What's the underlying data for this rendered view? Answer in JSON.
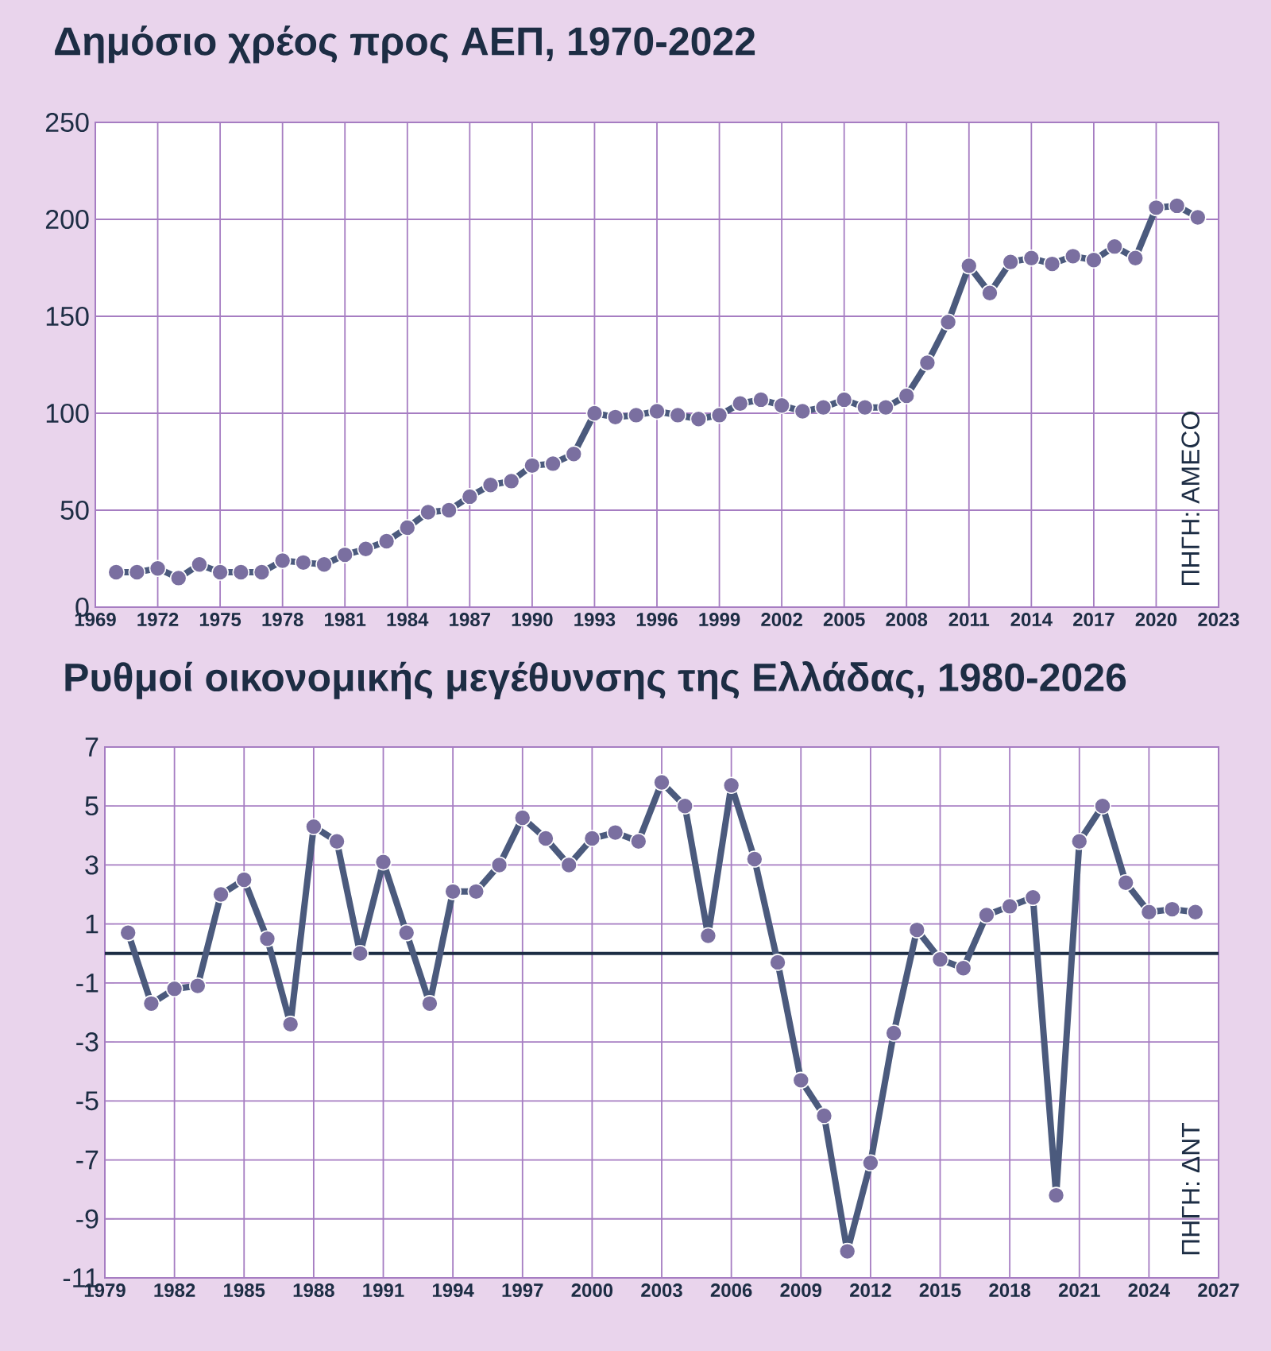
{
  "chart_data": [
    {
      "type": "line",
      "title": "Δημόσιο χρέος προς ΑΕΠ, 1970-2022",
      "x": [
        1970,
        1971,
        1972,
        1973,
        1974,
        1975,
        1976,
        1977,
        1978,
        1979,
        1980,
        1981,
        1982,
        1983,
        1984,
        1985,
        1986,
        1987,
        1988,
        1989,
        1990,
        1991,
        1992,
        1993,
        1994,
        1995,
        1996,
        1997,
        1998,
        1999,
        2000,
        2001,
        2002,
        2003,
        2004,
        2005,
        2006,
        2007,
        2008,
        2009,
        2010,
        2011,
        2012,
        2013,
        2014,
        2015,
        2016,
        2017,
        2018,
        2019,
        2020,
        2021,
        2022
      ],
      "values": [
        18,
        18,
        20,
        15,
        22,
        18,
        18,
        18,
        24,
        23,
        22,
        27,
        30,
        34,
        41,
        49,
        50,
        57,
        63,
        65,
        73,
        74,
        79,
        100,
        98,
        99,
        101,
        99,
        97,
        99,
        105,
        107,
        104,
        101,
        103,
        107,
        103,
        103,
        109,
        126,
        147,
        176,
        162,
        178,
        180,
        177,
        181,
        179,
        186,
        180,
        206,
        207,
        201
      ],
      "color": "#4b5a7d",
      "marker": "circle",
      "grid": true,
      "xlim": [
        1969,
        2023
      ],
      "ylim": [
        0,
        250
      ],
      "xticks": [
        1969,
        1972,
        1975,
        1978,
        1981,
        1984,
        1987,
        1990,
        1993,
        1996,
        1999,
        2002,
        2005,
        2008,
        2011,
        2014,
        2017,
        2020,
        2023
      ],
      "yticks": [
        0,
        50,
        100,
        150,
        200,
        250
      ],
      "annotations": [
        "ΠΗΓΗ: AMECO"
      ]
    },
    {
      "type": "line",
      "title": "Ρυθμοί οικονομικής μεγέθυνσης της Ελλάδας, 1980-2026",
      "x": [
        1980,
        1981,
        1982,
        1983,
        1984,
        1985,
        1986,
        1987,
        1988,
        1989,
        1990,
        1991,
        1992,
        1993,
        1994,
        1995,
        1996,
        1997,
        1998,
        1999,
        2000,
        2001,
        2002,
        2003,
        2004,
        2005,
        2006,
        2007,
        2008,
        2009,
        2010,
        2011,
        2012,
        2013,
        2014,
        2015,
        2016,
        2017,
        2018,
        2019,
        2020,
        2021,
        2022,
        2023,
        2024,
        2025,
        2026
      ],
      "values": [
        0.7,
        -1.7,
        -1.2,
        -1.1,
        2.0,
        2.5,
        0.5,
        -2.4,
        4.3,
        3.8,
        0.0,
        3.1,
        0.7,
        -1.7,
        2.1,
        2.1,
        3.0,
        4.6,
        3.9,
        3.0,
        3.9,
        4.1,
        3.8,
        5.8,
        5.0,
        0.6,
        5.7,
        3.2,
        -0.3,
        -4.3,
        -5.5,
        -10.1,
        -7.1,
        -2.7,
        0.8,
        -0.2,
        -0.5,
        1.3,
        1.6,
        1.9,
        -8.2,
        3.8,
        5.0,
        2.4,
        1.4,
        1.5,
        1.4
      ],
      "color": "#4b5a7d",
      "marker": "circle",
      "grid": true,
      "xlim": [
        1979,
        2027
      ],
      "ylim": [
        -11,
        7
      ],
      "xticks": [
        1979,
        1982,
        1985,
        1988,
        1991,
        1994,
        1997,
        2000,
        2003,
        2006,
        2009,
        2012,
        2015,
        2018,
        2021,
        2024,
        2027
      ],
      "yticks": [
        -11,
        -9,
        -7,
        -5,
        -3,
        -1,
        1,
        3,
        5,
        7
      ],
      "ref_lines": [
        {
          "axis": "y",
          "value": 0,
          "color": "#1d2d44"
        }
      ],
      "annotations": [
        "ΠΗΓΗ: ΔΝΤ"
      ]
    }
  ]
}
